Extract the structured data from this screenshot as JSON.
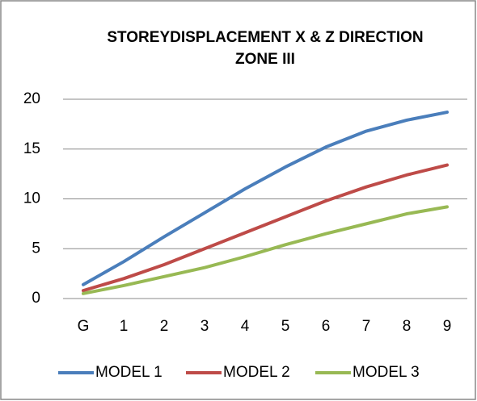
{
  "chart_data": {
    "type": "line",
    "title": [
      "STOREYDISPLACEMENT X & Z DIRECTION",
      "ZONE III"
    ],
    "categories": [
      "G",
      "1",
      "2",
      "3",
      "4",
      "5",
      "6",
      "7",
      "8",
      "9"
    ],
    "series": [
      {
        "name": "MODEL 1",
        "color": "#4a7ebb",
        "values": [
          1.4,
          3.7,
          6.2,
          8.6,
          11.0,
          13.2,
          15.2,
          16.8,
          17.9,
          18.7
        ]
      },
      {
        "name": "MODEL 2",
        "color": "#be4b48",
        "values": [
          0.8,
          2.0,
          3.4,
          5.0,
          6.6,
          8.2,
          9.8,
          11.2,
          12.4,
          13.4
        ]
      },
      {
        "name": "MODEL 3",
        "color": "#98b954",
        "values": [
          0.5,
          1.3,
          2.2,
          3.1,
          4.2,
          5.4,
          6.5,
          7.5,
          8.5,
          9.2
        ]
      }
    ],
    "ylim": [
      0,
      20
    ],
    "yticks": [
      0,
      5,
      10,
      15,
      20
    ],
    "grid": true,
    "legend": "bottom"
  }
}
